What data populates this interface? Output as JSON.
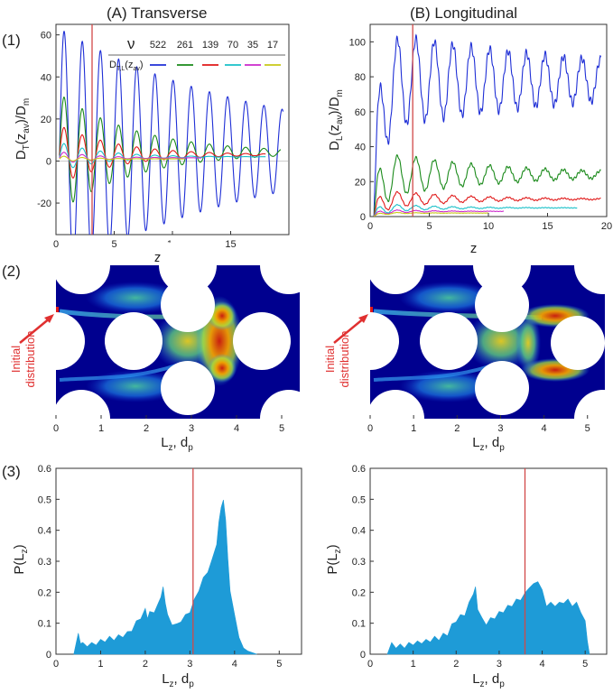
{
  "figure": {
    "col_a_header": "(A)   Transverse",
    "col_b_header": "(B)   Longitudinal",
    "row_labels": [
      "(1)",
      "(2)",
      "(3)"
    ],
    "initial_label_line1": "Initial",
    "initial_label_line2": "distribution"
  },
  "colors": {
    "blue": "#1f2fd6",
    "green": "#1a8a1a",
    "red": "#e01818",
    "cyan": "#18c0c8",
    "magenta": "#cc28cc",
    "yellow": "#c8c818",
    "marker": "#d24848",
    "hist": "#1e9bd7",
    "heat_bg": "#00008f"
  },
  "legend": {
    "nu_symbol": "ν",
    "nu_values": [
      "522",
      "261",
      "139",
      "70",
      "35",
      "17"
    ],
    "entry_main": "D",
    "entry_sub": "T,L",
    "entry_tail": "(z",
    "entry_tail_sub": "av",
    "entry_close": ")"
  },
  "chart_data": [
    {
      "id": "A1",
      "type": "line",
      "title": "",
      "xlabel_main": "z",
      "xlabel_sub": "av",
      "xlabel_tail": ", d",
      "xlabel_tail_sub": "p",
      "ylabel": "D_T(z_av)/D_m",
      "ylabel_main": "D",
      "ylabel_sub": "T",
      "ylabel_mid": "(z",
      "ylabel_mid_sub": "av",
      "ylabel_tail": ")/D",
      "ylabel_tail_sub": "m",
      "xlim": [
        0,
        20
      ],
      "ylim": [
        -35,
        65
      ],
      "xticks": [
        0,
        5,
        10,
        15,
        20
      ],
      "yticks": [
        -20,
        0,
        20,
        40,
        60
      ],
      "marker_x": 3.1,
      "series": [
        {
          "name": "522",
          "amplitude": 58,
          "decay": 0.17,
          "base": 5,
          "end_x": 19.5
        },
        {
          "name": "261",
          "amplitude": 28,
          "decay": 0.45,
          "base": 4,
          "end_x": 19.3
        },
        {
          "name": "139",
          "amplitude": 14,
          "decay": 0.6,
          "base": 3,
          "end_x": 18.0
        },
        {
          "name": "70",
          "amplitude": 7,
          "decay": 0.8,
          "base": 2,
          "end_x": 18.0
        },
        {
          "name": "35",
          "amplitude": 3,
          "decay": 1.0,
          "base": 1.5,
          "end_x": 12.5
        },
        {
          "name": "17",
          "amplitude": 1.5,
          "decay": 1.2,
          "base": 1,
          "end_x": 11.0
        }
      ]
    },
    {
      "id": "B1",
      "type": "line",
      "title": "",
      "xlabel_main": "z",
      "xlabel_sub": "av",
      "xlabel_tail": ", d",
      "xlabel_tail_sub": "p",
      "ylabel": "D_L(z_av)/D_m",
      "ylabel_main": "D",
      "ylabel_sub": "L",
      "ylabel_mid": "(z",
      "ylabel_mid_sub": "av",
      "ylabel_tail": ")/D",
      "ylabel_tail_sub": "m",
      "xlim": [
        0,
        20
      ],
      "ylim": [
        0,
        110
      ],
      "xticks": [
        0,
        5,
        10,
        15,
        20
      ],
      "yticks": [
        0,
        20,
        40,
        60,
        80,
        100
      ],
      "marker_x": 3.6,
      "series": [
        {
          "name": "522",
          "amplitude": 28,
          "decay": 0.1,
          "base": 78,
          "end_x": 19.5
        },
        {
          "name": "261",
          "amplitude": 14,
          "decay": 0.22,
          "base": 24,
          "end_x": 19.5
        },
        {
          "name": "139",
          "amplitude": 6,
          "decay": 0.35,
          "base": 10,
          "end_x": 19.5
        },
        {
          "name": "70",
          "amplitude": 3,
          "decay": 0.5,
          "base": 5,
          "end_x": 17.5
        },
        {
          "name": "35",
          "amplitude": 1.5,
          "decay": 0.7,
          "base": 3,
          "end_x": 11.3
        },
        {
          "name": "17",
          "amplitude": 0.8,
          "decay": 0.9,
          "base": 2,
          "end_x": 10.0
        }
      ]
    },
    {
      "id": "A2",
      "type": "heatmap",
      "title": "",
      "xlabel_main": "L",
      "xlabel_sub": "z",
      "xlabel_tail": ", d",
      "xlabel_tail_sub": "p",
      "xlim": [
        0,
        5.4
      ],
      "xticks": [
        0,
        1,
        2,
        3,
        4,
        5
      ],
      "arms": "transverse"
    },
    {
      "id": "B2",
      "type": "heatmap",
      "title": "",
      "xlabel_main": "L",
      "xlabel_sub": "z",
      "xlabel_tail": ", d",
      "xlabel_tail_sub": "p",
      "xlim": [
        0,
        5.4
      ],
      "xticks": [
        0,
        1,
        2,
        3,
        4,
        5
      ],
      "arms": "longitudinal"
    },
    {
      "id": "A3",
      "type": "area",
      "title": "",
      "xlabel_main": "L",
      "xlabel_sub": "z",
      "xlabel_tail": ", d",
      "xlabel_tail_sub": "p",
      "ylabel": "P(L_z)",
      "ylabel_main": "P(L",
      "ylabel_sub": "z",
      "ylabel_tail": ")",
      "xlim": [
        0,
        5.5
      ],
      "ylim": [
        0,
        0.6
      ],
      "xticks": [
        0,
        1,
        2,
        3,
        4,
        5
      ],
      "yticks": [
        0,
        0.1,
        0.2,
        0.3,
        0.4,
        0.5,
        0.6
      ],
      "marker_x": 3.07,
      "x": [
        0.4,
        0.5,
        0.55,
        0.6,
        0.7,
        0.8,
        0.9,
        1.0,
        1.1,
        1.2,
        1.3,
        1.4,
        1.5,
        1.6,
        1.7,
        1.8,
        1.9,
        2.0,
        2.05,
        2.1,
        2.2,
        2.3,
        2.35,
        2.4,
        2.45,
        2.5,
        2.6,
        2.7,
        2.8,
        2.9,
        3.0,
        3.1,
        3.2,
        3.3,
        3.4,
        3.5,
        3.6,
        3.65,
        3.7,
        3.75,
        3.8,
        3.85,
        3.9,
        4.0,
        4.1,
        4.2,
        4.3,
        4.4,
        4.5
      ],
      "y": [
        0,
        0.06,
        0.04,
        0.03,
        0.03,
        0.03,
        0.035,
        0.04,
        0.045,
        0.05,
        0.05,
        0.055,
        0.06,
        0.065,
        0.08,
        0.1,
        0.12,
        0.14,
        0.12,
        0.13,
        0.14,
        0.16,
        0.19,
        0.21,
        0.17,
        0.12,
        0.1,
        0.09,
        0.11,
        0.12,
        0.14,
        0.17,
        0.21,
        0.24,
        0.27,
        0.3,
        0.36,
        0.42,
        0.48,
        0.49,
        0.44,
        0.3,
        0.21,
        0.12,
        0.06,
        0.02,
        0.01,
        0.005,
        0
      ]
    },
    {
      "id": "B3",
      "type": "area",
      "title": "",
      "xlabel_main": "L",
      "xlabel_sub": "z",
      "xlabel_tail": ", d",
      "xlabel_tail_sub": "p",
      "ylabel": "P(L_z)",
      "ylabel_main": "P(L",
      "ylabel_sub": "z",
      "ylabel_tail": ")",
      "xlim": [
        0,
        5.5
      ],
      "ylim": [
        0,
        0.6
      ],
      "xticks": [
        0,
        1,
        2,
        3,
        4,
        5
      ],
      "yticks": [
        0,
        0.1,
        0.2,
        0.3,
        0.4,
        0.5,
        0.6
      ],
      "marker_x": 3.6,
      "x": [
        0.4,
        0.5,
        0.6,
        0.7,
        0.8,
        0.9,
        1.0,
        1.1,
        1.2,
        1.3,
        1.4,
        1.5,
        1.6,
        1.7,
        1.8,
        1.9,
        2.0,
        2.1,
        2.2,
        2.3,
        2.4,
        2.45,
        2.5,
        2.6,
        2.7,
        2.8,
        2.9,
        3.0,
        3.1,
        3.2,
        3.3,
        3.4,
        3.5,
        3.6,
        3.7,
        3.8,
        3.9,
        4.0,
        4.1,
        4.2,
        4.3,
        4.4,
        4.5,
        4.6,
        4.7,
        4.8,
        4.9,
        5.0,
        5.05,
        5.1
      ],
      "y": [
        0,
        0.03,
        0.025,
        0.025,
        0.025,
        0.03,
        0.035,
        0.035,
        0.04,
        0.04,
        0.045,
        0.05,
        0.05,
        0.06,
        0.065,
        0.09,
        0.11,
        0.12,
        0.13,
        0.16,
        0.2,
        0.21,
        0.15,
        0.11,
        0.1,
        0.11,
        0.12,
        0.13,
        0.14,
        0.15,
        0.16,
        0.17,
        0.18,
        0.19,
        0.22,
        0.22,
        0.24,
        0.2,
        0.16,
        0.16,
        0.16,
        0.16,
        0.17,
        0.17,
        0.16,
        0.16,
        0.14,
        0.1,
        0.05,
        0
      ]
    }
  ]
}
